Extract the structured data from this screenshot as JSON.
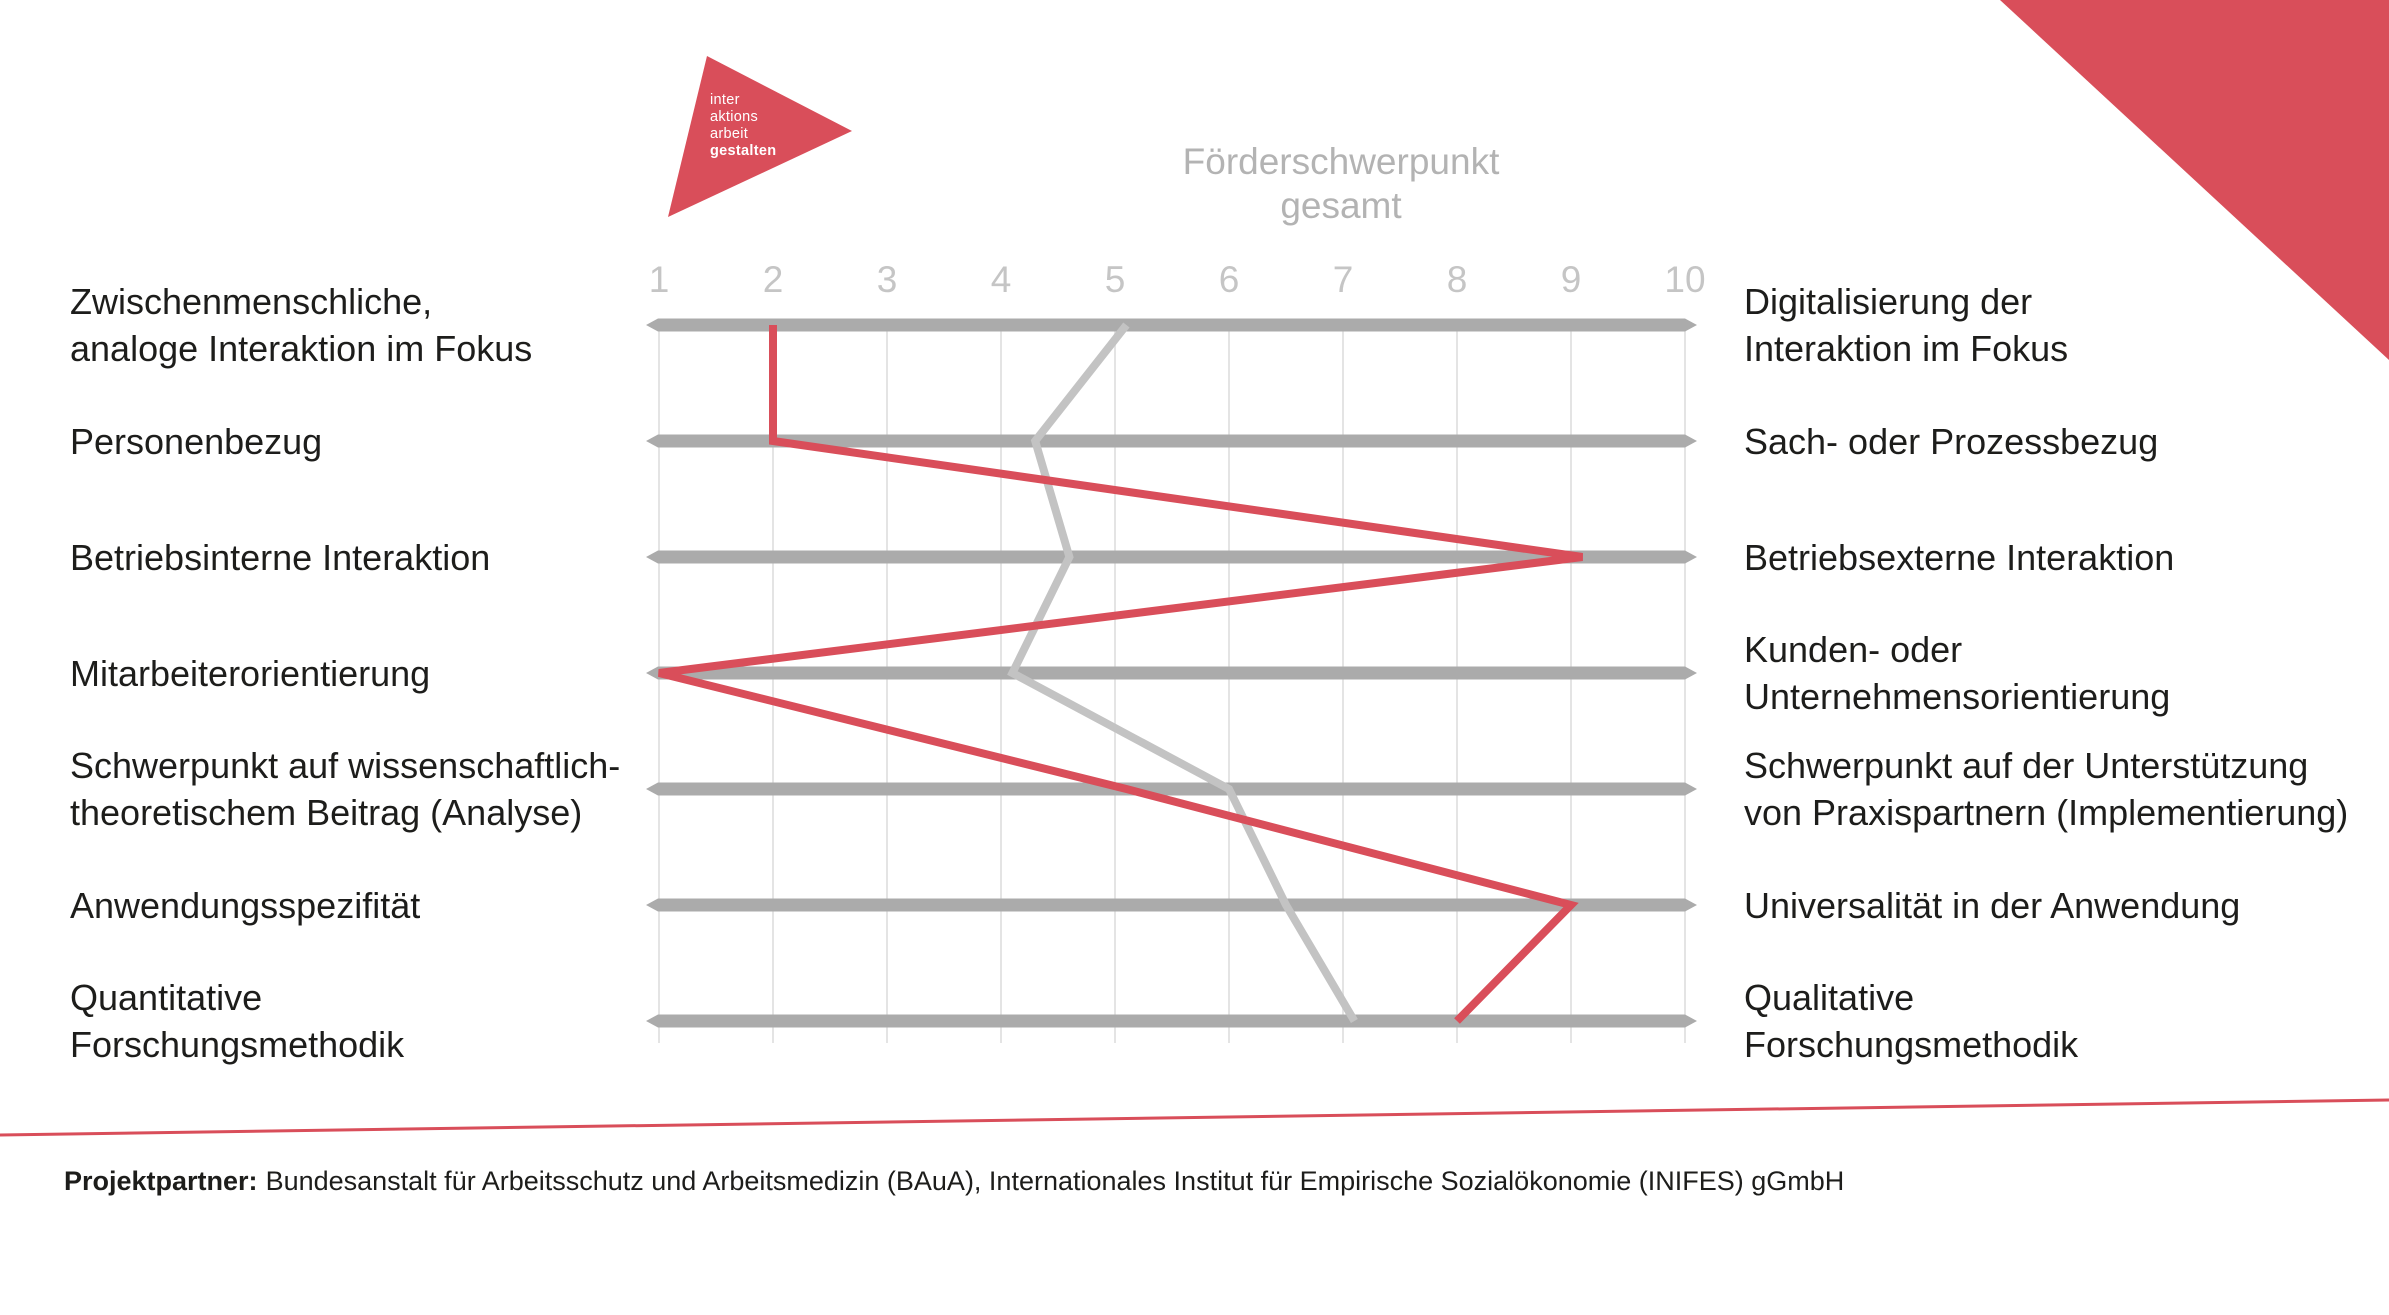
{
  "title": {
    "line1": "Förderschwerpunkt",
    "line2": "gesamt"
  },
  "logo": {
    "lines": [
      "inter",
      "aktions",
      "arbeit",
      "gestalten"
    ]
  },
  "footer": {
    "label": "Projektpartner:",
    "text": "Bundesanstalt für Arbeitsschutz und Arbeitsmedizin (BAuA), Internationales Institut für Empirische Sozialökonomie (INIFES) gGmbH"
  },
  "colors": {
    "accent_red": "#d94e5a",
    "bar_gray": "#ababab",
    "line_gray": "#c3c3c3",
    "grid_gray": "#e4e4e4",
    "tick_gray": "#c5c5c5",
    "title_gray": "#b3b3b3",
    "text_dark": "#1d1d1b"
  },
  "chart_data": {
    "type": "line",
    "orientation": "horizontal-rows-profile",
    "x_range": [
      1,
      10
    ],
    "x_ticks": [
      1,
      2,
      3,
      4,
      5,
      6,
      7,
      8,
      9,
      10
    ],
    "grid": true,
    "legend_position": "top-center-title",
    "title": "Förderschwerpunkt gesamt",
    "rows_left": [
      "Zwischenmenschliche,\nanaloge Interaktion im Fokus",
      "Personenbezug",
      "Betriebsinterne Interaktion",
      "Mitarbeiterorientierung",
      "Schwerpunkt auf wissenschaftlich-\ntheoretischem Beitrag (Analyse)",
      "Anwendungsspezifität",
      "Quantitative\nForschungsmethodik"
    ],
    "rows_right": [
      "Digitalisierung der\nInteraktion im Fokus",
      "Sach- oder Prozessbezug",
      "Betriebsexterne Interaktion",
      "Kunden- oder\nUnternehmensorientierung",
      "Schwerpunkt auf der Unterstützung\nvon Praxispartnern (Implementierung)",
      "Universalität in der Anwendung",
      "Qualitative\nForschungsmethodik"
    ],
    "series": [
      {
        "name": "Förderschwerpunkt gesamt",
        "color": "#c3c3c3",
        "values": [
          5.1,
          4.3,
          4.6,
          4.1,
          6.0,
          6.5,
          7.1
        ]
      },
      {
        "name": "",
        "color": "#d94e5a",
        "values": [
          2.0,
          2.0,
          9.1,
          1.0,
          5.1,
          9.0,
          8.0
        ]
      }
    ]
  }
}
